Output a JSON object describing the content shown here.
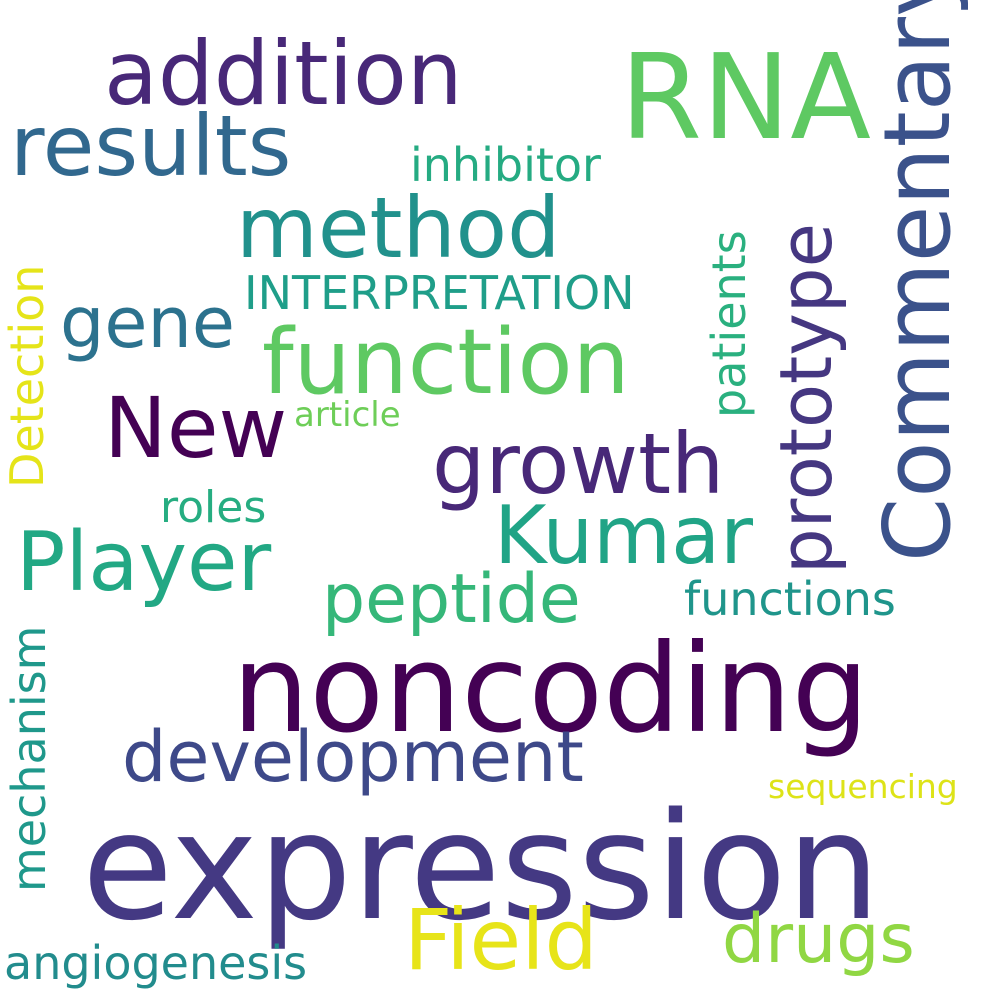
{
  "words": [
    {
      "text": "expression",
      "color": "#443983"
    },
    {
      "text": "noncoding",
      "color": "#440154"
    },
    {
      "text": "RNA",
      "color": "#5ec962"
    },
    {
      "text": "function",
      "color": "#5ec962"
    },
    {
      "text": "addition",
      "color": "#482878"
    },
    {
      "text": "results",
      "color": "#31688e"
    },
    {
      "text": "method",
      "color": "#21918c"
    },
    {
      "text": "growth",
      "color": "#482878"
    },
    {
      "text": "New",
      "color": "#440154"
    },
    {
      "text": "Kumar",
      "color": "#20a486"
    },
    {
      "text": "Player",
      "color": "#22a884"
    },
    {
      "text": "development",
      "color": "#3e4989"
    },
    {
      "text": "peptide",
      "color": "#35b779"
    },
    {
      "text": "gene",
      "color": "#2c728e"
    },
    {
      "text": "Field",
      "color": "#e7e419"
    },
    {
      "text": "drugs",
      "color": "#90d743"
    },
    {
      "text": "Commentary",
      "color": "#3b528b"
    },
    {
      "text": "prototype",
      "color": "#453781"
    },
    {
      "text": "inhibitor",
      "color": "#25ab82"
    },
    {
      "text": "INTERPRETATION",
      "color": "#1f9e89"
    },
    {
      "text": "functions",
      "color": "#1f958b"
    },
    {
      "text": "roles",
      "color": "#26ad81"
    },
    {
      "text": "article",
      "color": "#6ece58"
    },
    {
      "text": "angiogenesis",
      "color": "#228c8d"
    },
    {
      "text": "sequencing",
      "color": "#dde318"
    },
    {
      "text": "patients",
      "color": "#2ab07f"
    },
    {
      "text": "Detection",
      "color": "#e5e419"
    },
    {
      "text": "mechanism",
      "color": "#1f988b"
    }
  ]
}
